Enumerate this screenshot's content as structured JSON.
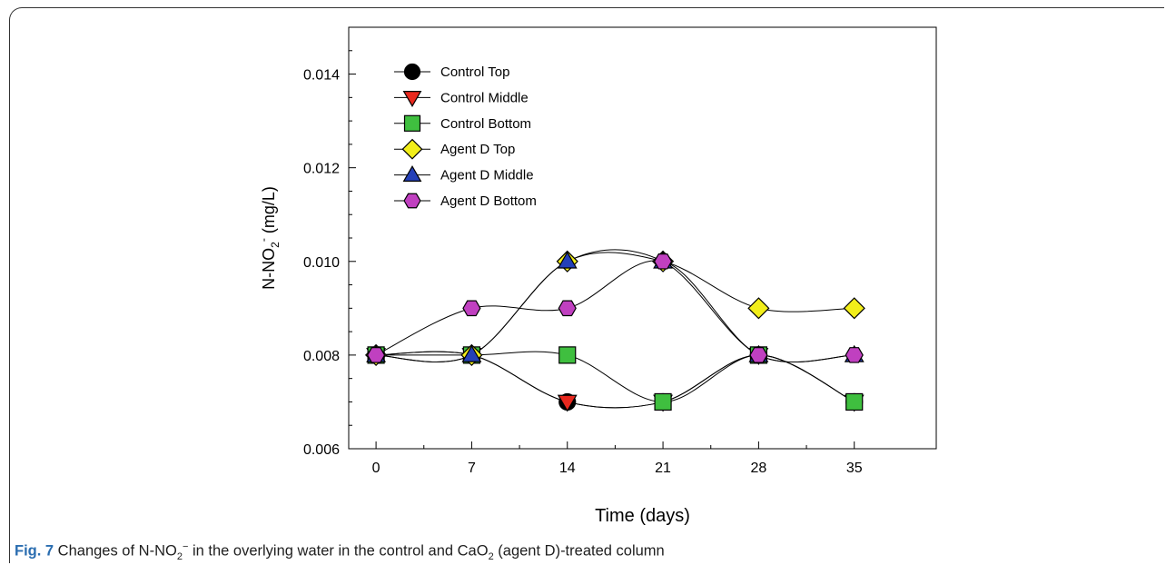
{
  "chart_data": {
    "type": "line",
    "xlabel": "Time (days)",
    "ylabel_main": "N-NO",
    "ylabel_sub": "2",
    "ylabel_sup": "-",
    "ylabel_tail": " (mg/L)",
    "x": [
      0,
      7,
      14,
      21,
      28,
      35
    ],
    "xlim": [
      -2,
      41
    ],
    "ylim": [
      0.006,
      0.015
    ],
    "yticks": [
      0.006,
      0.008,
      0.01,
      0.012,
      0.014
    ],
    "ytick_labels": [
      "0.006",
      "0.008",
      "0.010",
      "0.012",
      "0.014"
    ],
    "xtick_labels": [
      "0",
      "7",
      "14",
      "21",
      "28",
      "35"
    ],
    "legend_position": "top-left",
    "series": [
      {
        "name": "Control Top",
        "marker": "circle",
        "color": "#000000",
        "values": [
          0.008,
          0.008,
          0.007,
          0.007,
          0.008,
          0.007
        ]
      },
      {
        "name": "Control Middle",
        "marker": "triangle-down",
        "color": "#e8281e",
        "values": [
          0.008,
          0.008,
          0.007,
          0.007,
          0.008,
          0.007
        ]
      },
      {
        "name": "Control Bottom",
        "marker": "square",
        "color": "#3fbf3f",
        "values": [
          0.008,
          0.008,
          0.008,
          0.007,
          0.008,
          0.007
        ]
      },
      {
        "name": "Agent D Top",
        "marker": "diamond",
        "color": "#f2ee1a",
        "values": [
          0.008,
          0.008,
          0.01,
          0.01,
          0.009,
          0.009
        ]
      },
      {
        "name": "Agent D Middle",
        "marker": "triangle-up",
        "color": "#2440b8",
        "values": [
          0.008,
          0.008,
          0.01,
          0.01,
          0.008,
          0.008
        ]
      },
      {
        "name": "Agent D Bottom",
        "marker": "hexagon",
        "color": "#c040c0",
        "values": [
          0.008,
          0.009,
          0.009,
          0.01,
          0.008,
          0.008
        ]
      }
    ]
  },
  "caption": {
    "label": "Fig. 7",
    "text_a": " Changes of N-NO",
    "sub_a": "2",
    "sup_a": "−",
    "text_b": " in the overlying water in the control and CaO",
    "sub_b": "2",
    "text_c": " (agent D)-treated column"
  }
}
